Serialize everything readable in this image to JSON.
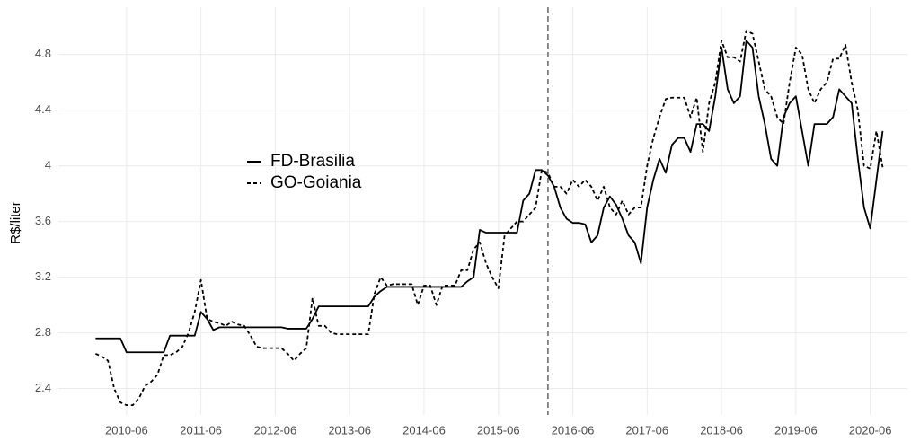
{
  "chart_data": {
    "type": "line",
    "y_label": "R$/liter",
    "x": [
      "2010-01",
      "2010-02",
      "2010-03",
      "2010-04",
      "2010-05",
      "2010-06",
      "2010-07",
      "2010-08",
      "2010-09",
      "2010-10",
      "2010-11",
      "2010-12",
      "2011-01",
      "2011-02",
      "2011-03",
      "2011-04",
      "2011-05",
      "2011-06",
      "2011-07",
      "2011-08",
      "2011-09",
      "2011-10",
      "2011-11",
      "2011-12",
      "2012-01",
      "2012-02",
      "2012-03",
      "2012-04",
      "2012-05",
      "2012-06",
      "2012-07",
      "2012-08",
      "2012-09",
      "2012-10",
      "2012-11",
      "2012-12",
      "2013-01",
      "2013-02",
      "2013-03",
      "2013-04",
      "2013-05",
      "2013-06",
      "2013-07",
      "2013-08",
      "2013-09",
      "2013-10",
      "2013-11",
      "2013-12",
      "2014-01",
      "2014-02",
      "2014-03",
      "2014-04",
      "2014-05",
      "2014-06",
      "2014-07",
      "2014-08",
      "2014-09",
      "2014-10",
      "2014-11",
      "2014-12",
      "2015-01",
      "2015-02",
      "2015-03",
      "2015-04",
      "2015-05",
      "2015-06",
      "2015-07",
      "2015-08",
      "2015-09",
      "2015-10",
      "2015-11",
      "2015-12",
      "2016-01",
      "2016-02",
      "2016-03",
      "2016-04",
      "2016-05",
      "2016-06",
      "2016-07",
      "2016-08",
      "2016-09",
      "2016-10",
      "2016-11",
      "2016-12",
      "2017-01",
      "2017-02",
      "2017-03",
      "2017-04",
      "2017-05",
      "2017-06",
      "2017-07",
      "2017-08",
      "2017-09",
      "2017-10",
      "2017-11",
      "2017-12",
      "2018-01",
      "2018-02",
      "2018-03",
      "2018-04",
      "2018-05",
      "2018-06",
      "2018-07",
      "2018-08",
      "2018-09",
      "2018-10",
      "2018-11",
      "2018-12",
      "2019-01",
      "2019-02",
      "2019-03",
      "2019-04",
      "2019-05",
      "2019-06",
      "2019-07",
      "2019-08",
      "2019-09",
      "2019-10",
      "2019-11",
      "2019-12",
      "2020-01",
      "2020-02",
      "2020-03",
      "2020-04",
      "2020-05",
      "2020-06",
      "2020-07",
      "2020-08"
    ],
    "series": [
      {
        "name": "FD-Brasilia",
        "color": "#000000",
        "dash": "solid",
        "values": [
          2.76,
          2.76,
          2.76,
          2.76,
          2.76,
          2.66,
          2.66,
          2.66,
          2.66,
          2.66,
          2.66,
          2.66,
          2.78,
          2.78,
          2.78,
          2.78,
          2.78,
          2.95,
          2.9,
          2.82,
          2.84,
          2.84,
          2.84,
          2.84,
          2.84,
          2.84,
          2.84,
          2.84,
          2.84,
          2.84,
          2.84,
          2.83,
          2.83,
          2.83,
          2.83,
          2.9,
          2.99,
          2.99,
          2.99,
          2.99,
          2.99,
          2.99,
          2.99,
          2.99,
          2.99,
          3.06,
          3.1,
          3.13,
          3.13,
          3.13,
          3.13,
          3.13,
          3.13,
          3.13,
          3.13,
          3.13,
          3.13,
          3.13,
          3.13,
          3.13,
          3.17,
          3.2,
          3.54,
          3.52,
          3.52,
          3.52,
          3.52,
          3.52,
          3.52,
          3.75,
          3.8,
          3.97,
          3.97,
          3.93,
          3.85,
          3.7,
          3.62,
          3.59,
          3.59,
          3.58,
          3.45,
          3.5,
          3.7,
          3.78,
          3.72,
          3.62,
          3.5,
          3.45,
          3.3,
          3.7,
          3.9,
          4.05,
          3.95,
          4.15,
          4.2,
          4.2,
          4.1,
          4.3,
          4.3,
          4.25,
          4.5,
          4.85,
          4.55,
          4.45,
          4.5,
          4.9,
          4.85,
          4.5,
          4.3,
          4.05,
          4.0,
          4.35,
          4.45,
          4.5,
          4.25,
          4.0,
          4.3,
          4.3,
          4.3,
          4.35,
          4.55,
          4.5,
          4.45,
          4.05,
          3.7,
          3.55,
          3.9,
          4.25
        ]
      },
      {
        "name": "GO-Goiania",
        "color": "#000000",
        "dash": "dashed",
        "values": [
          2.65,
          2.63,
          2.6,
          2.4,
          2.3,
          2.28,
          2.28,
          2.33,
          2.42,
          2.45,
          2.5,
          2.64,
          2.64,
          2.66,
          2.7,
          2.8,
          2.95,
          3.18,
          2.9,
          2.88,
          2.87,
          2.85,
          2.88,
          2.86,
          2.85,
          2.78,
          2.7,
          2.69,
          2.69,
          2.69,
          2.69,
          2.65,
          2.6,
          2.65,
          2.69,
          3.05,
          2.85,
          2.85,
          2.8,
          2.79,
          2.79,
          2.79,
          2.79,
          2.79,
          2.79,
          3.08,
          3.2,
          3.14,
          3.15,
          3.15,
          3.15,
          3.15,
          3.0,
          3.14,
          3.14,
          3.0,
          3.14,
          3.14,
          3.14,
          3.25,
          3.25,
          3.4,
          3.45,
          3.3,
          3.2,
          3.12,
          3.5,
          3.55,
          3.6,
          3.6,
          3.65,
          3.7,
          3.97,
          3.95,
          3.85,
          3.85,
          3.8,
          3.9,
          3.85,
          3.9,
          3.85,
          3.75,
          3.85,
          3.7,
          3.65,
          3.75,
          3.65,
          3.7,
          3.7,
          4.0,
          4.2,
          4.35,
          4.48,
          4.49,
          4.49,
          4.49,
          4.35,
          4.49,
          4.1,
          4.45,
          4.6,
          4.9,
          4.78,
          4.78,
          4.75,
          4.97,
          4.95,
          4.75,
          4.55,
          4.5,
          4.35,
          4.3,
          4.6,
          4.85,
          4.8,
          4.55,
          4.45,
          4.55,
          4.6,
          4.77,
          4.77,
          4.87,
          4.6,
          4.4,
          4.0,
          3.98,
          4.25,
          3.99
        ]
      }
    ],
    "xlim": [
      "2009-07",
      "2020-12"
    ],
    "xticks": [
      "2010-06",
      "2011-06",
      "2012-06",
      "2013-06",
      "2014-06",
      "2015-06",
      "2016-06",
      "2017-06",
      "2018-06",
      "2019-06",
      "2020-06"
    ],
    "ylim": [
      2.21,
      5.14
    ],
    "yticks": [
      2.4,
      2.8,
      3.2,
      3.6,
      4.0,
      4.4,
      4.8
    ],
    "vline": "2016-02",
    "vline_color": "#666666",
    "grid": true,
    "legend": "center-left"
  }
}
